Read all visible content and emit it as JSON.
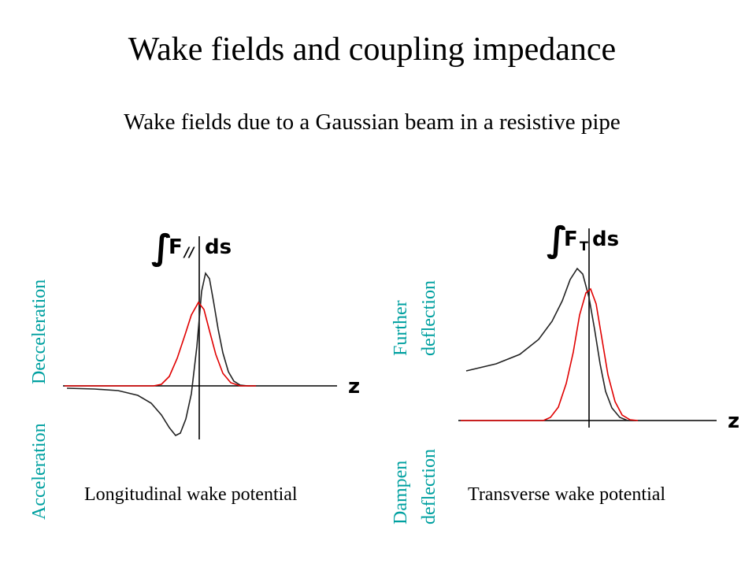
{
  "slide": {
    "title": "Wake fields and coupling impedance",
    "subtitle": "Wake fields due to a Gaussian beam in a resistive pipe"
  },
  "longitudinal": {
    "caption": "Longitudinal wake potential",
    "axis_label": "z",
    "label_upper": "Decceleration",
    "label_lower": "Acceleration",
    "integral_symbol": "∫",
    "integral_body": "F",
    "integral_sub": "//",
    "integral_tail": "ds"
  },
  "transverse": {
    "caption": "Transverse wake potential",
    "axis_label": "z",
    "label_upper_1": "Further",
    "label_upper_2": "deflection",
    "label_lower_1": "Dampen",
    "label_lower_2": "deflection",
    "integral_symbol": "∫",
    "integral_body": "F",
    "integral_sub": "T",
    "integral_tail": "ds"
  },
  "colors": {
    "label": "#00a0a0",
    "wake_curve": "#222222",
    "beam_curve": "#e00000"
  }
}
